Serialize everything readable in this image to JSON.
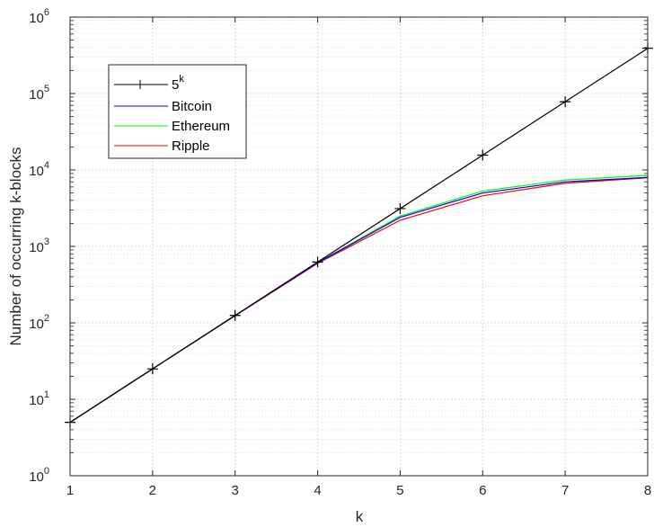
{
  "chart_data": {
    "type": "line",
    "title": "",
    "xlabel": "k",
    "ylabel": "Number of occurring k-blocks",
    "xlim": [
      1,
      8
    ],
    "ylim": [
      1,
      1000000
    ],
    "yscale": "log",
    "grid": true,
    "minor_grid": true,
    "legend_position": "top-left",
    "xticks": [
      "1",
      "2",
      "3",
      "4",
      "5",
      "6",
      "7",
      "8"
    ],
    "yticks": [
      {
        "base": "10",
        "exp": "0"
      },
      {
        "base": "10",
        "exp": "1"
      },
      {
        "base": "10",
        "exp": "2"
      },
      {
        "base": "10",
        "exp": "3"
      },
      {
        "base": "10",
        "exp": "4"
      },
      {
        "base": "10",
        "exp": "5"
      },
      {
        "base": "10",
        "exp": "6"
      }
    ],
    "x": [
      1,
      2,
      3,
      4,
      5,
      6,
      7,
      8
    ],
    "series": [
      {
        "name_base": "5",
        "name_sup": "k",
        "color": "#000000",
        "marker": "+",
        "values": [
          5,
          25,
          125,
          625,
          3125,
          15625,
          78125,
          390625
        ]
      },
      {
        "name": "Bitcoin",
        "color": "#0000ff",
        "marker": "none",
        "values": [
          5,
          25,
          125,
          610,
          2400,
          5000,
          7000,
          8000
        ]
      },
      {
        "name": "Ethereum",
        "color": "#00ff00",
        "marker": "none",
        "values": [
          5,
          25,
          125,
          615,
          2500,
          5300,
          7400,
          8500
        ]
      },
      {
        "name": "Ripple",
        "color": "#ff0000",
        "marker": "none",
        "values": [
          5,
          25,
          124,
          600,
          2200,
          4600,
          6700,
          7900
        ]
      }
    ]
  }
}
